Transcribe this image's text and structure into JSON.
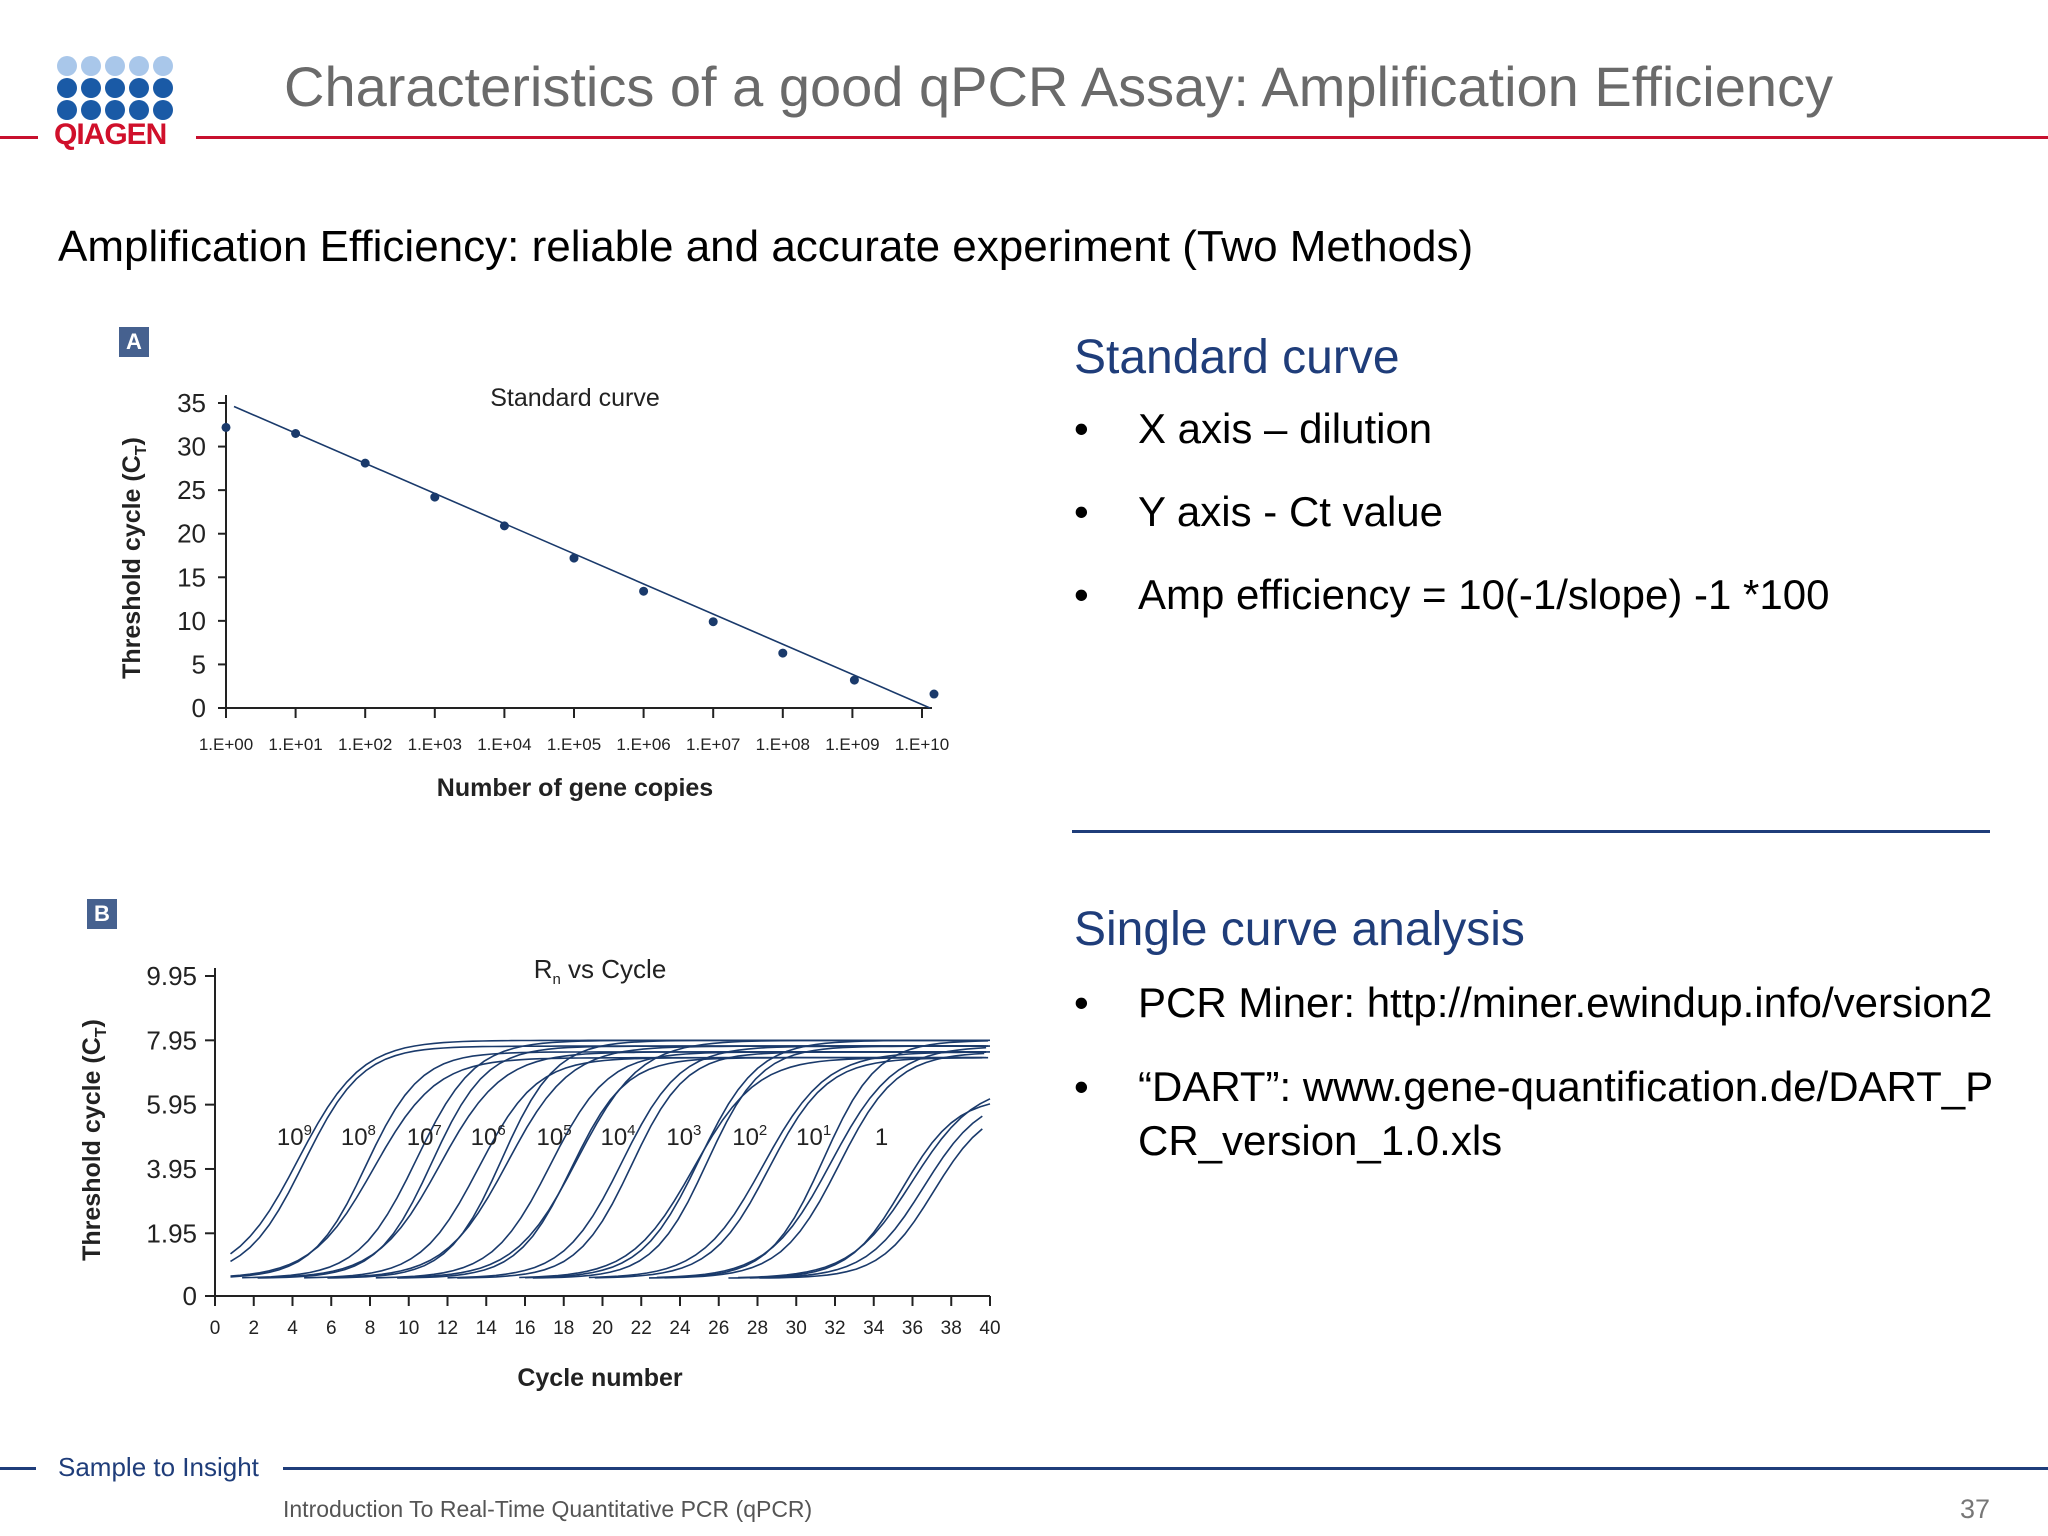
{
  "header": {
    "logo_text": "QIAGEN",
    "title": "Characteristics of a good qPCR Assay: Amplification Efficiency"
  },
  "subtitle": "Amplification Efficiency: reliable and accurate experiment (Two Methods)",
  "panel_a": {
    "badge": "A",
    "chart_data": {
      "type": "scatter",
      "title": "Standard curve",
      "xlabel": "Number of gene copies",
      "ylabel": "Threshold cycle (C",
      "ylabel_subscript": "T",
      "ylabel_suffix": ")",
      "categories": [
        "1.E+00",
        "1.E+01",
        "1.E+02",
        "1.E+03",
        "1.E+04",
        "1.E+05",
        "1.E+06",
        "1.E+07",
        "1.E+08",
        "1.E+09",
        "1.E+10"
      ],
      "values": [
        32.2,
        31.5,
        28.1,
        24.2,
        20.9,
        17.2,
        13.4,
        9.9,
        6.3,
        3.2,
        1.6
      ],
      "yticks": [
        0,
        5,
        10,
        15,
        20,
        25,
        30,
        35
      ],
      "ylim": [
        0,
        35
      ],
      "trendline": {
        "start": 34.6,
        "end": 0
      },
      "point_color": "#1a3a6b"
    }
  },
  "panel_b": {
    "badge": "B",
    "chart_data": {
      "type": "line",
      "title_main": "R",
      "title_subscript": "n",
      "title_suffix": " vs Cycle",
      "xlabel": "Cycle number",
      "ylabel": "Threshold cycle (C",
      "ylabel_subscript": "T",
      "ylabel_suffix": ")",
      "x_ticks": [
        0,
        2,
        4,
        6,
        8,
        10,
        12,
        14,
        16,
        18,
        20,
        22,
        24,
        26,
        28,
        30,
        32,
        34,
        36,
        38,
        40
      ],
      "y_ticks": [
        "0",
        "1.95",
        "3.95",
        "5.95",
        "7.95",
        "9.95"
      ],
      "y_tick_values": [
        0,
        1.95,
        3.95,
        5.95,
        7.95,
        9.95
      ],
      "xlim": [
        0,
        40
      ],
      "ylim": [
        0,
        9.95
      ],
      "curve_labels": [
        {
          "base": "10",
          "exp": "9",
          "cycle": 4.1
        },
        {
          "base": "10",
          "exp": "8",
          "cycle": 7.4
        },
        {
          "base": "10",
          "exp": "7",
          "cycle": 10.8
        },
        {
          "base": "10",
          "exp": "6",
          "cycle": 14.1
        },
        {
          "base": "10",
          "exp": "5",
          "cycle": 17.5
        },
        {
          "base": "10",
          "exp": "4",
          "cycle": 20.8
        },
        {
          "base": "10",
          "exp": "3",
          "cycle": 24.2
        },
        {
          "base": "10",
          "exp": "2",
          "cycle": 27.6
        },
        {
          "base": "10",
          "exp": "1",
          "cycle": 30.9
        },
        {
          "base": "1",
          "exp": "",
          "cycle": 34.4
        }
      ],
      "series_midpoints": [
        4.3,
        4.6,
        7.8,
        8.2,
        10.4,
        11.2,
        11.6,
        13.6,
        14.8,
        15.1,
        17.3,
        18.4,
        18.7,
        21.0,
        21.5,
        24.7,
        25.0,
        25.4,
        28.3,
        28.6,
        31.4,
        31.8,
        32.2,
        35.5,
        36.0,
        36.6,
        37.1
      ],
      "curve_plateau": 7.95,
      "curve_baseline": 0.55,
      "line_color": "#1a3a6b"
    }
  },
  "standard_curve": {
    "heading": "Standard curve",
    "bullets": [
      "X axis – dilution",
      "Y axis - Ct value",
      "Amp efficiency = 10(-1/slope) -1 *100"
    ]
  },
  "single_curve": {
    "heading": "Single curve analysis",
    "bullets": [
      "PCR Miner: http://miner.ewindup.info/version2",
      "“DART”: www.gene-quantification.de/DART_PCR_version_1.0.xls"
    ]
  },
  "footer": {
    "brand": "Sample to Insight",
    "course": "Introduction To Real-Time Quantitative PCR (qPCR)",
    "page_number": "37"
  },
  "colors": {
    "accent_red": "#c8102e",
    "navy": "#1f3d7a",
    "badge": "#46618f",
    "logo_dot_light": "#a9c7ea",
    "logo_dot_dark": "#1a5aa6"
  }
}
